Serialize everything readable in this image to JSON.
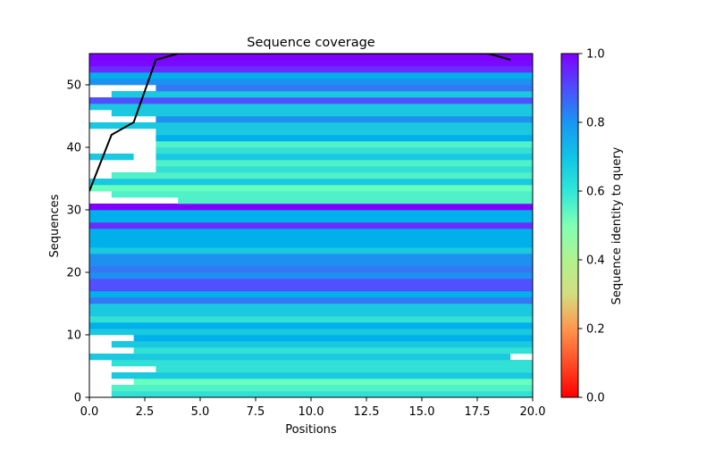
{
  "chart_data": {
    "type": "heatmap",
    "title": "Sequence coverage",
    "xlabel": "Positions",
    "ylabel": "Sequences",
    "xlim": [
      0,
      20
    ],
    "ylim": [
      0,
      55
    ],
    "x_ticks": [
      "0.0",
      "2.5",
      "5.0",
      "7.5",
      "10.0",
      "12.5",
      "15.0",
      "17.5",
      "20.0"
    ],
    "x_tick_values": [
      0,
      2.5,
      5,
      7.5,
      10,
      12.5,
      15,
      17.5,
      20
    ],
    "y_ticks": [
      "0",
      "10",
      "20",
      "30",
      "40",
      "50"
    ],
    "y_tick_values": [
      0,
      10,
      20,
      30,
      40,
      50
    ],
    "colorbar": {
      "label": "Sequence identity to query",
      "colormap": "rainbow",
      "range": [
        0,
        1
      ],
      "ticks": [
        "0.0",
        "0.2",
        "0.4",
        "0.6",
        "0.8",
        "1.0"
      ],
      "tick_values": [
        0,
        0.2,
        0.4,
        0.6,
        0.8,
        1.0
      ]
    },
    "rows": [
      {
        "seq": 0,
        "start": 1,
        "end": 20,
        "identity": 0.62
      },
      {
        "seq": 1,
        "start": 1,
        "end": 20,
        "identity": 0.57
      },
      {
        "seq": 2,
        "start": 2,
        "end": 20,
        "identity": 0.52
      },
      {
        "seq": 3,
        "start": 1,
        "end": 20,
        "identity": 0.67
      },
      {
        "seq": 4,
        "start": 3,
        "end": 20,
        "identity": 0.62
      },
      {
        "seq": 5,
        "start": 1,
        "end": 20,
        "identity": 0.62
      },
      {
        "seq": 6,
        "start": 0,
        "end": 19,
        "identity": 0.67
      },
      {
        "seq": 7,
        "start": 2,
        "end": 20,
        "identity": 0.62
      },
      {
        "seq": 8,
        "start": 1,
        "end": 20,
        "identity": 0.67
      },
      {
        "seq": 9,
        "start": 2,
        "end": 20,
        "identity": 0.72
      },
      {
        "seq": 10,
        "start": 0,
        "end": 20,
        "identity": 0.67
      },
      {
        "seq": 11,
        "start": 0,
        "end": 20,
        "identity": 0.72
      },
      {
        "seq": 12,
        "start": 0,
        "end": 20,
        "identity": 0.62
      },
      {
        "seq": 13,
        "start": 0,
        "end": 20,
        "identity": 0.67
      },
      {
        "seq": 14,
        "start": 0,
        "end": 20,
        "identity": 0.67
      },
      {
        "seq": 15,
        "start": 0,
        "end": 20,
        "identity": 0.84
      },
      {
        "seq": 16,
        "start": 0,
        "end": 20,
        "identity": 0.72
      },
      {
        "seq": 17,
        "start": 0,
        "end": 20,
        "identity": 0.89
      },
      {
        "seq": 18,
        "start": 0,
        "end": 20,
        "identity": 0.89
      },
      {
        "seq": 19,
        "start": 0,
        "end": 20,
        "identity": 0.79
      },
      {
        "seq": 20,
        "start": 0,
        "end": 20,
        "identity": 0.84
      },
      {
        "seq": 21,
        "start": 0,
        "end": 20,
        "identity": 0.79
      },
      {
        "seq": 22,
        "start": 0,
        "end": 20,
        "identity": 0.79
      },
      {
        "seq": 23,
        "start": 0,
        "end": 20,
        "identity": 0.67
      },
      {
        "seq": 24,
        "start": 0,
        "end": 20,
        "identity": 0.72
      },
      {
        "seq": 25,
        "start": 0,
        "end": 20,
        "identity": 0.72
      },
      {
        "seq": 26,
        "start": 0,
        "end": 20,
        "identity": 0.72
      },
      {
        "seq": 27,
        "start": 0,
        "end": 20,
        "identity": 0.94
      },
      {
        "seq": 28,
        "start": 0,
        "end": 20,
        "identity": 0.72
      },
      {
        "seq": 29,
        "start": 0,
        "end": 20,
        "identity": 0.72
      },
      {
        "seq": 30,
        "start": 0,
        "end": 20,
        "identity": 1.0
      },
      {
        "seq": 31,
        "start": 4,
        "end": 20,
        "identity": 0.57
      },
      {
        "seq": 32,
        "start": 1,
        "end": 20,
        "identity": 0.57
      },
      {
        "seq": 33,
        "start": 0,
        "end": 20,
        "identity": 0.52
      },
      {
        "seq": 34,
        "start": 0,
        "end": 20,
        "identity": 0.67
      },
      {
        "seq": 35,
        "start": 1,
        "end": 20,
        "identity": 0.57
      },
      {
        "seq": 36,
        "start": 3,
        "end": 20,
        "identity": 0.62
      },
      {
        "seq": 37,
        "start": 3,
        "end": 20,
        "identity": 0.57
      },
      {
        "seq": 38,
        "start": 3,
        "end": 20,
        "identity": 0.67,
        "extra_segment": {
          "start": 0,
          "end": 2
        }
      },
      {
        "seq": 39,
        "start": 3,
        "end": 20,
        "identity": 0.62
      },
      {
        "seq": 40,
        "start": 3,
        "end": 20,
        "identity": 0.57
      },
      {
        "seq": 41,
        "start": 3,
        "end": 20,
        "identity": 0.72
      },
      {
        "seq": 42,
        "start": 3,
        "end": 20,
        "identity": 0.67
      },
      {
        "seq": 43,
        "start": 0,
        "end": 20,
        "identity": 0.67
      },
      {
        "seq": 44,
        "start": 3,
        "end": 20,
        "identity": 0.79
      },
      {
        "seq": 45,
        "start": 1,
        "end": 20,
        "identity": 0.67
      },
      {
        "seq": 46,
        "start": 0,
        "end": 20,
        "identity": 0.67
      },
      {
        "seq": 47,
        "start": 0,
        "end": 20,
        "identity": 0.89
      },
      {
        "seq": 48,
        "start": 1,
        "end": 20,
        "identity": 0.67
      },
      {
        "seq": 49,
        "start": 3,
        "end": 20,
        "identity": 0.84
      },
      {
        "seq": 50,
        "start": 0,
        "end": 20,
        "identity": 0.79
      },
      {
        "seq": 51,
        "start": 0,
        "end": 20,
        "identity": 0.72
      },
      {
        "seq": 52,
        "start": 0,
        "end": 20,
        "identity": 0.94
      },
      {
        "seq": 53,
        "start": 0,
        "end": 20,
        "identity": 0.98
      },
      {
        "seq": 54,
        "start": 0,
        "end": 20,
        "identity": 1.0
      }
    ],
    "coverage_line": {
      "x": [
        0,
        1,
        2,
        3,
        4,
        5,
        6,
        7,
        8,
        9,
        10,
        11,
        12,
        13,
        14,
        15,
        16,
        17,
        18,
        19
      ],
      "y": [
        33,
        42,
        44,
        54,
        55,
        55,
        55,
        55,
        55,
        55,
        55,
        55,
        55,
        55,
        55,
        55,
        55,
        55,
        55,
        54
      ],
      "color": "#000000"
    }
  }
}
